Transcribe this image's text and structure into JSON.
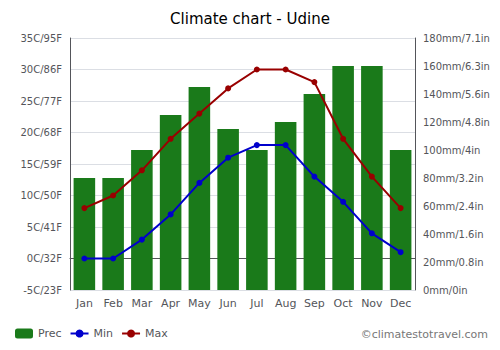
{
  "chart_data": {
    "type": "bar",
    "title": "Climate chart - Udine",
    "categories": [
      "Jan",
      "Feb",
      "Mar",
      "Apr",
      "May",
      "Jun",
      "Jul",
      "Aug",
      "Sep",
      "Oct",
      "Nov",
      "Dec"
    ],
    "series": [
      {
        "name": "Prec",
        "type": "bar",
        "axis": "y2",
        "color": "#1a7a1a",
        "values": [
          80,
          80,
          100,
          125,
          145,
          115,
          100,
          120,
          140,
          160,
          160,
          100
        ]
      },
      {
        "name": "Min",
        "type": "line",
        "color": "#0000cc",
        "marker": "circle",
        "values": [
          0,
          0,
          3,
          7,
          12,
          16,
          18,
          18,
          13,
          9,
          4,
          1
        ]
      },
      {
        "name": "Max",
        "type": "line",
        "color": "#990000",
        "marker": "circle",
        "values": [
          8,
          10,
          14,
          19,
          23,
          27,
          30,
          30,
          28,
          19,
          13,
          8
        ]
      }
    ],
    "ylim": [
      -5,
      35
    ],
    "yticks": [
      {
        "value": -5,
        "label": "-5C/23F"
      },
      {
        "value": 0,
        "label": "0C/32F"
      },
      {
        "value": 5,
        "label": "5C/41F"
      },
      {
        "value": 10,
        "label": "10C/50F"
      },
      {
        "value": 15,
        "label": "15C/59F"
      },
      {
        "value": 20,
        "label": "20C/68F"
      },
      {
        "value": 25,
        "label": "25C/77F"
      },
      {
        "value": 30,
        "label": "30C/86F"
      },
      {
        "value": 35,
        "label": "35C/95F"
      }
    ],
    "y2lim": [
      0,
      180
    ],
    "y2ticks": [
      {
        "value": 0,
        "label": "0mm/0in"
      },
      {
        "value": 20,
        "label": "20mm/0.8in"
      },
      {
        "value": 40,
        "label": "40mm/1.6in"
      },
      {
        "value": 60,
        "label": "60mm/2.4in"
      },
      {
        "value": 80,
        "label": "80mm/3.2in"
      },
      {
        "value": 100,
        "label": "100mm/4in"
      },
      {
        "value": 120,
        "label": "120mm/4.8in"
      },
      {
        "value": 140,
        "label": "140mm/5.6in"
      },
      {
        "value": 160,
        "label": "160mm/6.3in"
      },
      {
        "value": 180,
        "label": "180mm/7.1in"
      }
    ],
    "grid": true,
    "legend": "bottom",
    "annotations": [
      "©climatestotravel.com"
    ]
  }
}
